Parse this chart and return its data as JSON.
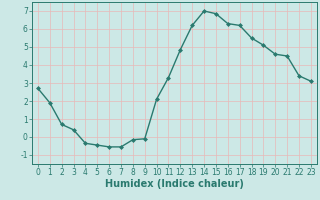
{
  "x": [
    0,
    1,
    2,
    3,
    4,
    5,
    6,
    7,
    8,
    9,
    10,
    11,
    12,
    13,
    14,
    15,
    16,
    17,
    18,
    19,
    20,
    21,
    22,
    23
  ],
  "y": [
    2.7,
    1.9,
    0.7,
    0.4,
    -0.35,
    -0.45,
    -0.55,
    -0.55,
    -0.15,
    -0.1,
    2.1,
    3.3,
    4.85,
    6.2,
    7.0,
    6.85,
    6.3,
    6.2,
    5.5,
    5.1,
    4.6,
    4.5,
    3.4,
    3.1
  ],
  "line_color": "#2a7a6f",
  "marker": "D",
  "marker_size": 2.0,
  "background_color": "#cce8e6",
  "grid_color": "#e8b8b8",
  "xlabel": "Humidex (Indice chaleur)",
  "xlabel_fontsize": 7,
  "xlabel_color": "#2a7a6f",
  "xlim": [
    -0.5,
    23.5
  ],
  "ylim": [
    -1.5,
    7.5
  ],
  "yticks": [
    -1,
    0,
    1,
    2,
    3,
    4,
    5,
    6,
    7
  ],
  "xticks": [
    0,
    1,
    2,
    3,
    4,
    5,
    6,
    7,
    8,
    9,
    10,
    11,
    12,
    13,
    14,
    15,
    16,
    17,
    18,
    19,
    20,
    21,
    22,
    23
  ],
  "tick_color": "#2a7a6f",
  "tick_fontsize": 5.5,
  "line_width": 1.0
}
